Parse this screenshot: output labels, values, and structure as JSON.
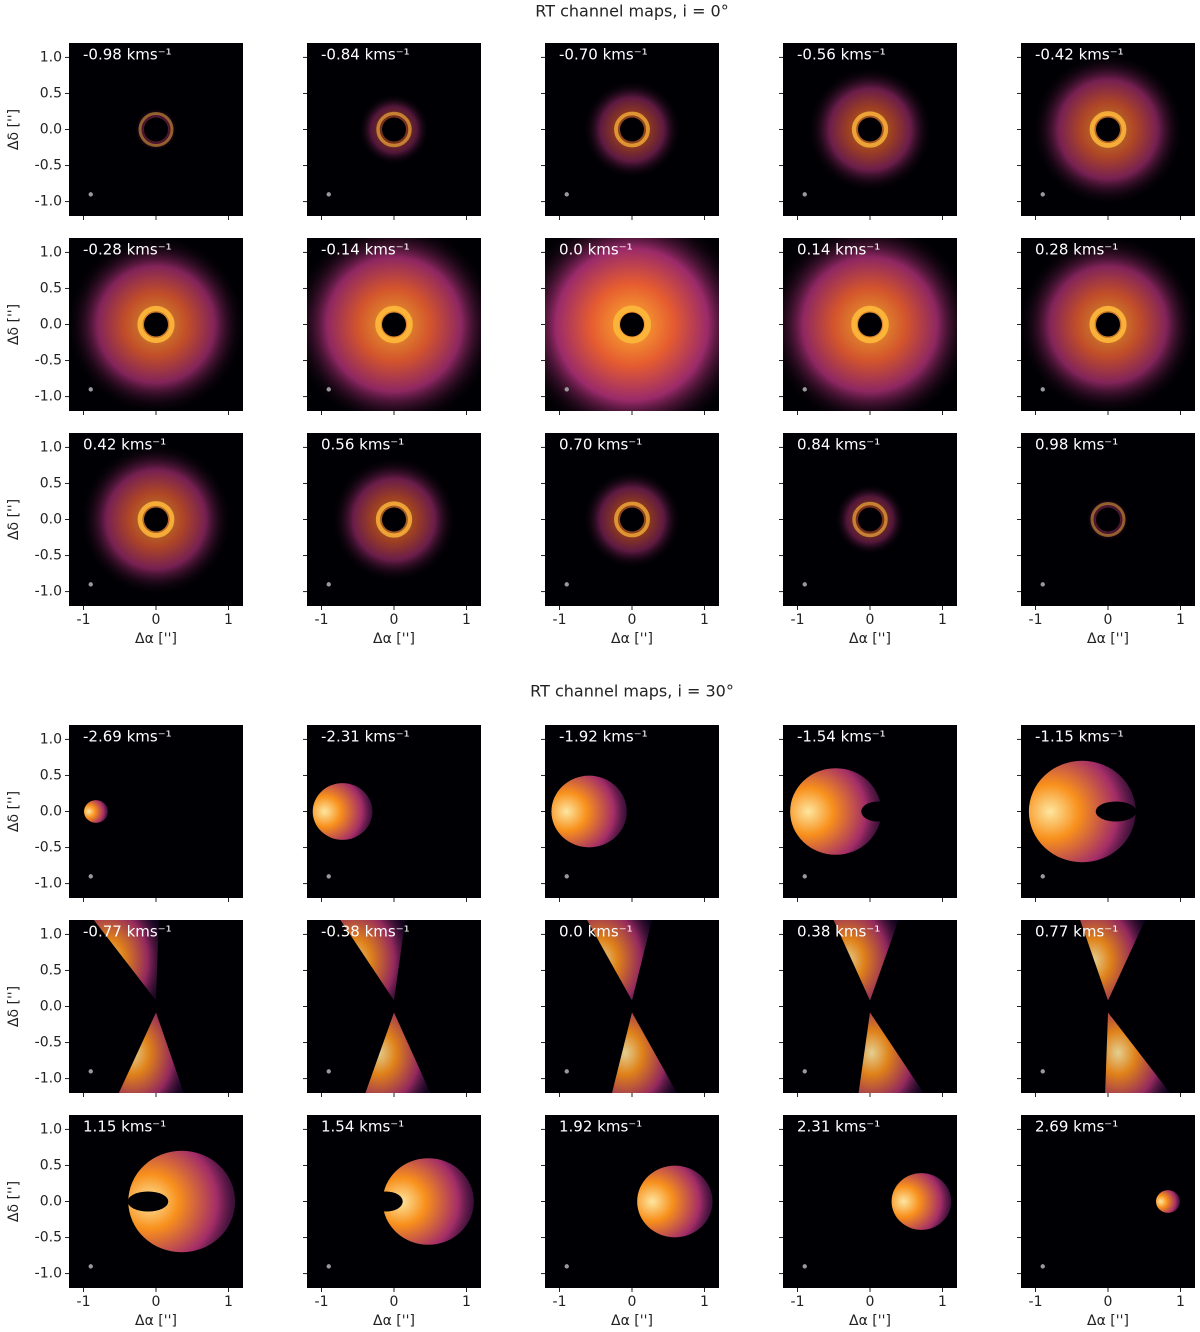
{
  "chart_data": [
    {
      "type": "image-grid",
      "title": "RT channel maps, i = 0°",
      "xlabel": "Δα ['']",
      "ylabel": "Δδ ['']",
      "xlim": [
        -1.2,
        1.2
      ],
      "ylim": [
        -1.2,
        1.2
      ],
      "xticks": [
        -1,
        0,
        1
      ],
      "yticks": [
        {
          "value": 1,
          "label": "1.0"
        },
        0.5,
        {
          "value": 0,
          "label": "0.0"
        },
        -0.5,
        {
          "value": -1,
          "label": "-1.0"
        }
      ],
      "panels": [
        "-0.98 kms⁻¹",
        "-0.84 kms⁻¹",
        "-0.70 kms⁻¹",
        "-0.56 kms⁻¹",
        "-0.42 kms⁻¹",
        "-0.28 kms⁻¹",
        "-0.14 kms⁻¹",
        "0.0 kms⁻¹",
        "0.14 kms⁻¹",
        "0.28 kms⁻¹",
        "0.42 kms⁻¹",
        "0.56 kms⁻¹",
        "0.70 kms⁻¹",
        "0.84 kms⁻¹",
        "0.98 kms⁻¹"
      ]
    },
    {
      "type": "image-grid",
      "title": "RT channel maps, i = 30°",
      "xlabel": "Δα ['']",
      "ylabel": "Δδ ['']",
      "xlim": [
        -1.2,
        1.2
      ],
      "ylim": [
        -1.2,
        1.2
      ],
      "xticks": [
        -1,
        0,
        1
      ],
      "yticks": [
        {
          "value": 1,
          "label": "1.0"
        },
        0.5,
        {
          "value": 0,
          "label": "0.0"
        },
        -0.5,
        {
          "value": -1,
          "label": "-1.0"
        }
      ],
      "panels": [
        "-2.69 kms⁻¹",
        "-2.31 kms⁻¹",
        "-1.92 kms⁻¹",
        "-1.54 kms⁻¹",
        "-1.15 kms⁻¹",
        "-0.77 kms⁻¹",
        "-0.38 kms⁻¹",
        "0.0 kms⁻¹",
        "0.38 kms⁻¹",
        "0.77 kms⁻¹",
        "1.15 kms⁻¹",
        "1.54 kms⁻¹",
        "1.92 kms⁻¹",
        "2.31 kms⁻¹",
        "2.69 kms⁻¹"
      ]
    }
  ]
}
